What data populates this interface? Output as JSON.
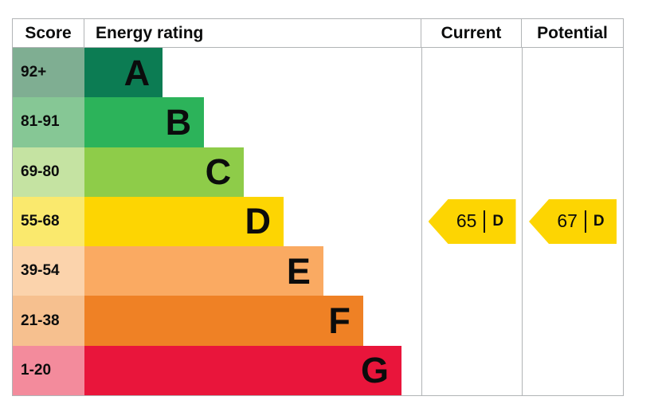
{
  "chart_data": {
    "type": "bar",
    "subtype": "energy-performance-certificate-rating",
    "orientation": "horizontal",
    "columns": {
      "score": "Score",
      "energy_rating": "Energy rating",
      "current": "Current",
      "potential": "Potential"
    },
    "bands": [
      {
        "score": "92+",
        "letter": "A",
        "bar_pct": 23.2,
        "bar_color": "#0c7c53",
        "tint_color": "#7fae92"
      },
      {
        "score": "81-91",
        "letter": "B",
        "bar_pct": 35.5,
        "bar_color": "#2cb35a",
        "tint_color": "#86c795"
      },
      {
        "score": "69-80",
        "letter": "C",
        "bar_pct": 47.3,
        "bar_color": "#8ecc49",
        "tint_color": "#c5e3a2"
      },
      {
        "score": "55-68",
        "letter": "D",
        "bar_pct": 59.1,
        "bar_color": "#fdd502",
        "tint_color": "#fae96d"
      },
      {
        "score": "39-54",
        "letter": "E",
        "bar_pct": 70.9,
        "bar_color": "#faaa62",
        "tint_color": "#fbd3ac"
      },
      {
        "score": "21-38",
        "letter": "F",
        "bar_pct": 82.7,
        "bar_color": "#ef8125",
        "tint_color": "#f6c08f"
      },
      {
        "score": "1-20",
        "letter": "G",
        "bar_pct": 94.1,
        "bar_color": "#e9153b",
        "tint_color": "#f38b9c"
      }
    ],
    "current": {
      "value": "65",
      "letter": "D",
      "band_index": 3,
      "arrow_color": "#fdd502"
    },
    "potential": {
      "value": "67",
      "letter": "D",
      "band_index": 3,
      "arrow_color": "#fdd502"
    }
  },
  "colors": {
    "border": "#b1b4b6",
    "text": "#0b0c0c",
    "background": "#ffffff"
  }
}
